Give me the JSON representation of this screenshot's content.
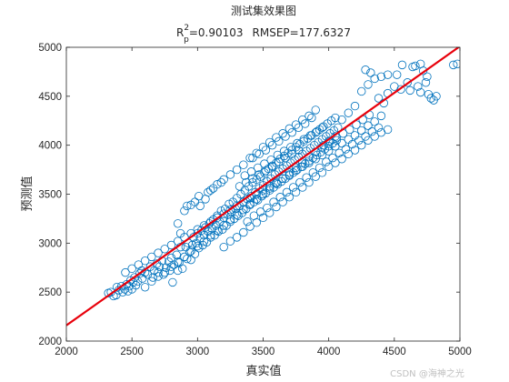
{
  "chart_data": {
    "type": "scatter",
    "title": "测试集效果图",
    "subtitle": {
      "prefix": "R",
      "sup": "2",
      "sub": "p",
      "r2_text": "=0.90103",
      "rmsep_text": "RMSEP=177.6327"
    },
    "xlabel": "真实值",
    "ylabel": "预测值",
    "xlim": [
      2000,
      5000
    ],
    "ylim": [
      2000,
      5000
    ],
    "xticks": [
      2000,
      2500,
      3000,
      3500,
      4000,
      4500,
      5000
    ],
    "yticks": [
      2000,
      2500,
      3000,
      3500,
      4000,
      4500,
      5000
    ],
    "grid": false,
    "legend": "none",
    "marker_color": "#0072BD",
    "line_color": "#E8000B",
    "fit_line": {
      "slope": 0.95,
      "intercept": 260
    },
    "points": [
      [
        2320,
        2490
      ],
      [
        2340,
        2500
      ],
      [
        2360,
        2460
      ],
      [
        2380,
        2470
      ],
      [
        2385,
        2550
      ],
      [
        2400,
        2520
      ],
      [
        2420,
        2560
      ],
      [
        2430,
        2500
      ],
      [
        2445,
        2530
      ],
      [
        2460,
        2580
      ],
      [
        2470,
        2510
      ],
      [
        2480,
        2560
      ],
      [
        2490,
        2620
      ],
      [
        2500,
        2530
      ],
      [
        2510,
        2600
      ],
      [
        2520,
        2650
      ],
      [
        2530,
        2570
      ],
      [
        2545,
        2610
      ],
      [
        2560,
        2690
      ],
      [
        2575,
        2720
      ],
      [
        2580,
        2640
      ],
      [
        2600,
        2700
      ],
      [
        2620,
        2680
      ],
      [
        2640,
        2760
      ],
      [
        2660,
        2650
      ],
      [
        2670,
        2720
      ],
      [
        2690,
        2790
      ],
      [
        2700,
        2700
      ],
      [
        2710,
        2760
      ],
      [
        2730,
        2820
      ],
      [
        2740,
        2680
      ],
      [
        2760,
        2750
      ],
      [
        2780,
        2810
      ],
      [
        2790,
        2720
      ],
      [
        2800,
        2850
      ],
      [
        2810,
        2600
      ],
      [
        2820,
        2780
      ],
      [
        2840,
        2880
      ],
      [
        2850,
        2720
      ],
      [
        2860,
        2800
      ],
      [
        2870,
        2960
      ],
      [
        2885,
        2740
      ],
      [
        2900,
        2860
      ],
      [
        2910,
        2960
      ],
      [
        2920,
        2840
      ],
      [
        2930,
        3000
      ],
      [
        2940,
        2910
      ],
      [
        2950,
        2830
      ],
      [
        2960,
        2980
      ],
      [
        2970,
        3060
      ],
      [
        2980,
        2890
      ],
      [
        2990,
        3000
      ],
      [
        3000,
        3100
      ],
      [
        3010,
        2950
      ],
      [
        3020,
        3050
      ],
      [
        3030,
        3130
      ],
      [
        3040,
        2980
      ],
      [
        3050,
        3080
      ],
      [
        3060,
        3160
      ],
      [
        3070,
        3010
      ],
      [
        3080,
        3120
      ],
      [
        3090,
        3200
      ],
      [
        3100,
        3060
      ],
      [
        3110,
        3150
      ],
      [
        3120,
        3240
      ],
      [
        3130,
        3080
      ],
      [
        3140,
        3180
      ],
      [
        3150,
        3280
      ],
      [
        3160,
        3120
      ],
      [
        3170,
        3220
      ],
      [
        3180,
        3330
      ],
      [
        3190,
        3140
      ],
      [
        3200,
        3260
      ],
      [
        3210,
        3350
      ],
      [
        3220,
        3180
      ],
      [
        3230,
        3290
      ],
      [
        3240,
        3400
      ],
      [
        3250,
        3220
      ],
      [
        3260,
        3320
      ],
      [
        3270,
        3420
      ],
      [
        3280,
        3250
      ],
      [
        3290,
        3350
      ],
      [
        3300,
        3460
      ],
      [
        3310,
        3280
      ],
      [
        3320,
        3380
      ],
      [
        3330,
        3500
      ],
      [
        3340,
        3310
      ],
      [
        3350,
        3420
      ],
      [
        3360,
        3540
      ],
      [
        3370,
        3350
      ],
      [
        3380,
        3450
      ],
      [
        3390,
        3580
      ],
      [
        3400,
        3390
      ],
      [
        3410,
        3480
      ],
      [
        3420,
        3620
      ],
      [
        3430,
        3420
      ],
      [
        3440,
        3520
      ],
      [
        3450,
        3650
      ],
      [
        3460,
        3440
      ],
      [
        3470,
        3560
      ],
      [
        3480,
        3680
      ],
      [
        3490,
        3480
      ],
      [
        3500,
        3590
      ],
      [
        3510,
        3720
      ],
      [
        3520,
        3510
      ],
      [
        3530,
        3630
      ],
      [
        3540,
        3760
      ],
      [
        3550,
        3540
      ],
      [
        3560,
        3660
      ],
      [
        3570,
        3790
      ],
      [
        3580,
        3570
      ],
      [
        3590,
        3700
      ],
      [
        3600,
        3820
      ],
      [
        3610,
        3600
      ],
      [
        3620,
        3730
      ],
      [
        3630,
        3860
      ],
      [
        3640,
        3630
      ],
      [
        3650,
        3760
      ],
      [
        3660,
        3890
      ],
      [
        3670,
        3660
      ],
      [
        3680,
        3790
      ],
      [
        3690,
        3920
      ],
      [
        3700,
        3690
      ],
      [
        3710,
        3820
      ],
      [
        3720,
        3950
      ],
      [
        3730,
        3720
      ],
      [
        3740,
        3850
      ],
      [
        3750,
        3980
      ],
      [
        3760,
        3750
      ],
      [
        3770,
        3880
      ],
      [
        3780,
        4010
      ],
      [
        3790,
        3780
      ],
      [
        3800,
        3910
      ],
      [
        3810,
        4040
      ],
      [
        3820,
        3810
      ],
      [
        3830,
        3940
      ],
      [
        3840,
        4070
      ],
      [
        3850,
        3840
      ],
      [
        3860,
        3970
      ],
      [
        3870,
        4100
      ],
      [
        3880,
        3870
      ],
      [
        3890,
        4000
      ],
      [
        3900,
        4130
      ],
      [
        3910,
        3900
      ],
      [
        3920,
        4030
      ],
      [
        3930,
        4160
      ],
      [
        3940,
        3930
      ],
      [
        3950,
        4060
      ],
      [
        3960,
        4190
      ],
      [
        3970,
        3960
      ],
      [
        3980,
        4090
      ],
      [
        3990,
        4220
      ],
      [
        4000,
        3990
      ],
      [
        4010,
        4120
      ],
      [
        4020,
        4250
      ],
      [
        4030,
        4020
      ],
      [
        4040,
        4150
      ],
      [
        4050,
        4280
      ],
      [
        4060,
        4050
      ],
      [
        4070,
        4180
      ],
      [
        3100,
        3540
      ],
      [
        3150,
        3600
      ],
      [
        3200,
        3650
      ],
      [
        3250,
        3700
      ],
      [
        3300,
        3750
      ],
      [
        3350,
        3800
      ],
      [
        3400,
        3870
      ],
      [
        3450,
        3920
      ],
      [
        3500,
        3980
      ],
      [
        3550,
        4030
      ],
      [
        3600,
        4080
      ],
      [
        3650,
        4120
      ],
      [
        3700,
        4170
      ],
      [
        3750,
        4210
      ],
      [
        3800,
        4260
      ],
      [
        3850,
        4300
      ],
      [
        3900,
        4360
      ],
      [
        3950,
        4180
      ],
      [
        3020,
        3380
      ],
      [
        3060,
        3450
      ],
      [
        2900,
        3330
      ],
      [
        2950,
        3390
      ],
      [
        3010,
        3480
      ],
      [
        3080,
        3520
      ],
      [
        3120,
        3560
      ],
      [
        3180,
        3620
      ],
      [
        2980,
        3420
      ],
      [
        2920,
        3380
      ],
      [
        2850,
        3200
      ],
      [
        2870,
        3100
      ],
      [
        3200,
        2960
      ],
      [
        3250,
        3020
      ],
      [
        3300,
        3060
      ],
      [
        3350,
        3110
      ],
      [
        3400,
        3170
      ],
      [
        3450,
        3210
      ],
      [
        3500,
        3260
      ],
      [
        3550,
        3310
      ],
      [
        3600,
        3370
      ],
      [
        3650,
        3420
      ],
      [
        3700,
        3470
      ],
      [
        3750,
        3520
      ],
      [
        3800,
        3570
      ],
      [
        3850,
        3620
      ],
      [
        3900,
        3680
      ],
      [
        3950,
        3720
      ],
      [
        4000,
        3780
      ],
      [
        4050,
        3820
      ],
      [
        4100,
        3860
      ],
      [
        4150,
        3910
      ],
      [
        4200,
        3950
      ],
      [
        4250,
        4000
      ],
      [
        4300,
        4050
      ],
      [
        4350,
        4090
      ],
      [
        4400,
        4130
      ],
      [
        4450,
        4160
      ],
      [
        3380,
        3220
      ],
      [
        3430,
        3280
      ],
      [
        3480,
        3320
      ],
      [
        3530,
        3360
      ],
      [
        3580,
        3420
      ],
      [
        3630,
        3470
      ],
      [
        3680,
        3520
      ],
      [
        3730,
        3570
      ],
      [
        3780,
        3620
      ],
      [
        3830,
        3670
      ],
      [
        3880,
        3720
      ],
      [
        3930,
        3770
      ],
      [
        3980,
        3830
      ],
      [
        4030,
        3870
      ],
      [
        4080,
        3920
      ],
      [
        4130,
        3960
      ],
      [
        4180,
        4010
      ],
      [
        4230,
        4050
      ],
      [
        4280,
        4090
      ],
      [
        4330,
        4140
      ],
      [
        4380,
        4180
      ],
      [
        4100,
        4260
      ],
      [
        4150,
        4330
      ],
      [
        4200,
        4400
      ],
      [
        4250,
        4550
      ],
      [
        4300,
        4620
      ],
      [
        4350,
        4680
      ],
      [
        4280,
        4770
      ],
      [
        4320,
        4740
      ],
      [
        4400,
        4700
      ],
      [
        4380,
        4480
      ],
      [
        4420,
        4430
      ],
      [
        4450,
        4530
      ],
      [
        4500,
        4600
      ],
      [
        4550,
        4570
      ],
      [
        4600,
        4640
      ],
      [
        4620,
        4560
      ],
      [
        4640,
        4800
      ],
      [
        4660,
        4810
      ],
      [
        4700,
        4830
      ],
      [
        4720,
        4760
      ],
      [
        4750,
        4700
      ],
      [
        4760,
        4520
      ],
      [
        4780,
        4480
      ],
      [
        4800,
        4460
      ],
      [
        4820,
        4500
      ],
      [
        4700,
        4540
      ],
      [
        4680,
        4600
      ],
      [
        4740,
        4640
      ],
      [
        4950,
        4820
      ],
      [
        4980,
        4830
      ],
      [
        4560,
        4820
      ],
      [
        4520,
        4720
      ],
      [
        4450,
        4720
      ],
      [
        4400,
        4300
      ],
      [
        4350,
        4240
      ],
      [
        4300,
        4200
      ],
      [
        4250,
        4150
      ],
      [
        4200,
        4100
      ],
      [
        4150,
        4060
      ],
      [
        4100,
        4020
      ],
      [
        4050,
        3990
      ],
      [
        4000,
        3940
      ],
      [
        3950,
        3900
      ],
      [
        3900,
        3860
      ],
      [
        3850,
        3820
      ],
      [
        3800,
        3780
      ],
      [
        3750,
        3740
      ],
      [
        3700,
        3700
      ],
      [
        3650,
        3660
      ],
      [
        3600,
        3620
      ],
      [
        3550,
        3580
      ],
      [
        3500,
        3540
      ],
      [
        3450,
        3500
      ],
      [
        3400,
        3460
      ],
      [
        3350,
        3420
      ],
      [
        3300,
        3380
      ],
      [
        3250,
        3340
      ],
      [
        3200,
        3300
      ],
      [
        3150,
        3260
      ],
      [
        3100,
        3220
      ],
      [
        3050,
        3180
      ],
      [
        3000,
        3140
      ],
      [
        2950,
        3100
      ],
      [
        2900,
        3060
      ],
      [
        2850,
        3020
      ],
      [
        2800,
        2980
      ],
      [
        2750,
        2940
      ],
      [
        2700,
        2900
      ],
      [
        2650,
        2860
      ],
      [
        2600,
        2820
      ],
      [
        2550,
        2780
      ],
      [
        2500,
        2740
      ],
      [
        2450,
        2700
      ],
      [
        2600,
        2550
      ],
      [
        2650,
        2610
      ],
      [
        2700,
        2660
      ],
      [
        2750,
        2700
      ],
      [
        2800,
        2760
      ],
      [
        2850,
        2810
      ],
      [
        2900,
        2860
      ],
      [
        2950,
        2920
      ],
      [
        3000,
        2970
      ],
      [
        3050,
        3020
      ],
      [
        3100,
        3080
      ],
      [
        3150,
        3130
      ],
      [
        3200,
        3180
      ],
      [
        3250,
        3240
      ],
      [
        3300,
        3290
      ],
      [
        3350,
        3340
      ],
      [
        3400,
        3400
      ],
      [
        3450,
        3450
      ],
      [
        3500,
        3500
      ],
      [
        3550,
        3560
      ],
      [
        3600,
        3610
      ],
      [
        3650,
        3660
      ],
      [
        3700,
        3720
      ],
      [
        3750,
        3770
      ],
      [
        3800,
        3820
      ],
      [
        3850,
        3880
      ],
      [
        3900,
        3930
      ],
      [
        3950,
        3980
      ],
      [
        4000,
        4040
      ],
      [
        4050,
        4090
      ],
      [
        3420,
        3870
      ],
      [
        3470,
        3910
      ],
      [
        3520,
        3950
      ],
      [
        3570,
        4000
      ],
      [
        3620,
        4040
      ],
      [
        3670,
        4090
      ],
      [
        3720,
        4130
      ],
      [
        3770,
        4180
      ],
      [
        3820,
        4220
      ],
      [
        3870,
        4280
      ],
      [
        3360,
        3690
      ],
      [
        3410,
        3730
      ],
      [
        3460,
        3770
      ],
      [
        3510,
        3810
      ],
      [
        3560,
        3850
      ],
      [
        3610,
        3900
      ],
      [
        3660,
        3940
      ],
      [
        3710,
        3980
      ],
      [
        3760,
        4020
      ],
      [
        3810,
        4060
      ],
      [
        3860,
        4100
      ],
      [
        3910,
        4140
      ],
      [
        3960,
        4000
      ],
      [
        4010,
        4040
      ],
      [
        4060,
        4080
      ],
      [
        4110,
        4120
      ],
      [
        4160,
        4160
      ],
      [
        4210,
        4210
      ],
      [
        4260,
        4260
      ],
      [
        4310,
        4310
      ],
      [
        3320,
        3580
      ],
      [
        3370,
        3620
      ],
      [
        3420,
        3660
      ],
      [
        3470,
        3700
      ],
      [
        3520,
        3740
      ],
      [
        3570,
        3780
      ],
      [
        3620,
        3830
      ],
      [
        3670,
        3870
      ],
      [
        3720,
        3910
      ],
      [
        3770,
        3950
      ]
    ]
  },
  "watermark": "CSDN @海神之光"
}
